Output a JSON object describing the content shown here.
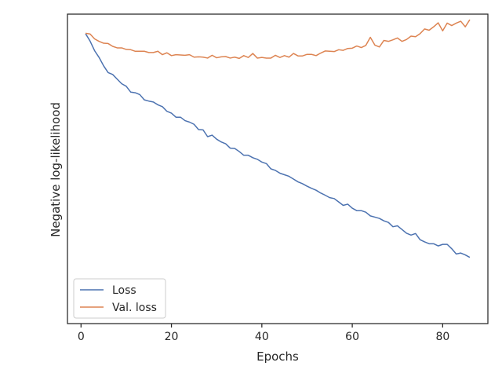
{
  "chart_data": {
    "type": "line",
    "xlabel": "Epochs",
    "ylabel": "Negative log-likelihood",
    "xlim": [
      -3,
      90
    ],
    "ylim": [
      0.0,
      1.0
    ],
    "xticks": [
      0,
      20,
      40,
      60,
      80
    ],
    "yticks_shown": false,
    "grid": false,
    "legend_position": "lower-left",
    "series": [
      {
        "name": "Loss",
        "color": "#4c72b0",
        "x": [
          1,
          2,
          3,
          4,
          5,
          6,
          7,
          8,
          9,
          10,
          11,
          12,
          13,
          14,
          15,
          16,
          17,
          18,
          19,
          20,
          21,
          22,
          23,
          24,
          25,
          26,
          27,
          28,
          29,
          30,
          31,
          32,
          33,
          34,
          35,
          36,
          37,
          38,
          39,
          40,
          41,
          42,
          43,
          44,
          45,
          46,
          47,
          48,
          49,
          50,
          51,
          52,
          53,
          54,
          55,
          56,
          57,
          58,
          59,
          60,
          61,
          62,
          63,
          64,
          65,
          66,
          67,
          68,
          69,
          70,
          71,
          72,
          73,
          74,
          75,
          76,
          77,
          78,
          79,
          80,
          81,
          82,
          83,
          84,
          85,
          86
        ],
        "values": [
          0.937,
          0.913,
          0.882,
          0.86,
          0.833,
          0.811,
          0.805,
          0.79,
          0.775,
          0.767,
          0.748,
          0.746,
          0.74,
          0.723,
          0.719,
          0.716,
          0.707,
          0.701,
          0.686,
          0.68,
          0.667,
          0.667,
          0.656,
          0.651,
          0.644,
          0.627,
          0.626,
          0.604,
          0.609,
          0.596,
          0.587,
          0.581,
          0.567,
          0.566,
          0.556,
          0.544,
          0.544,
          0.536,
          0.531,
          0.522,
          0.517,
          0.5,
          0.495,
          0.486,
          0.481,
          0.476,
          0.467,
          0.458,
          0.452,
          0.444,
          0.437,
          0.431,
          0.422,
          0.415,
          0.407,
          0.404,
          0.393,
          0.382,
          0.386,
          0.373,
          0.365,
          0.365,
          0.36,
          0.348,
          0.344,
          0.34,
          0.332,
          0.327,
          0.313,
          0.316,
          0.304,
          0.292,
          0.286,
          0.291,
          0.271,
          0.264,
          0.258,
          0.258,
          0.251,
          0.256,
          0.256,
          0.242,
          0.225,
          0.228,
          0.222,
          0.214
        ]
      },
      {
        "name": "Val. loss",
        "color": "#dd8452",
        "x": [
          1,
          2,
          3,
          4,
          5,
          6,
          7,
          8,
          9,
          10,
          11,
          12,
          13,
          14,
          15,
          16,
          17,
          18,
          19,
          20,
          21,
          22,
          23,
          24,
          25,
          26,
          27,
          28,
          29,
          30,
          31,
          32,
          33,
          34,
          35,
          36,
          37,
          38,
          39,
          40,
          41,
          42,
          43,
          44,
          45,
          46,
          47,
          48,
          49,
          50,
          51,
          52,
          53,
          54,
          55,
          56,
          57,
          58,
          59,
          60,
          61,
          62,
          63,
          64,
          65,
          66,
          67,
          68,
          69,
          70,
          71,
          72,
          73,
          74,
          75,
          76,
          77,
          78,
          79,
          80,
          81,
          82,
          83,
          84,
          85,
          86
        ],
        "values": [
          0.938,
          0.936,
          0.92,
          0.912,
          0.906,
          0.905,
          0.896,
          0.891,
          0.891,
          0.886,
          0.885,
          0.88,
          0.88,
          0.88,
          0.876,
          0.876,
          0.88,
          0.869,
          0.875,
          0.866,
          0.869,
          0.868,
          0.867,
          0.869,
          0.861,
          0.862,
          0.861,
          0.858,
          0.867,
          0.859,
          0.862,
          0.863,
          0.858,
          0.861,
          0.857,
          0.866,
          0.86,
          0.873,
          0.858,
          0.86,
          0.858,
          0.858,
          0.867,
          0.86,
          0.866,
          0.861,
          0.873,
          0.865,
          0.865,
          0.87,
          0.87,
          0.866,
          0.874,
          0.881,
          0.88,
          0.879,
          0.885,
          0.883,
          0.889,
          0.89,
          0.897,
          0.892,
          0.899,
          0.925,
          0.9,
          0.894,
          0.915,
          0.912,
          0.917,
          0.923,
          0.912,
          0.918,
          0.929,
          0.927,
          0.937,
          0.952,
          0.948,
          0.959,
          0.972,
          0.946,
          0.971,
          0.963,
          0.971,
          0.977,
          0.959,
          0.982
        ]
      }
    ]
  }
}
